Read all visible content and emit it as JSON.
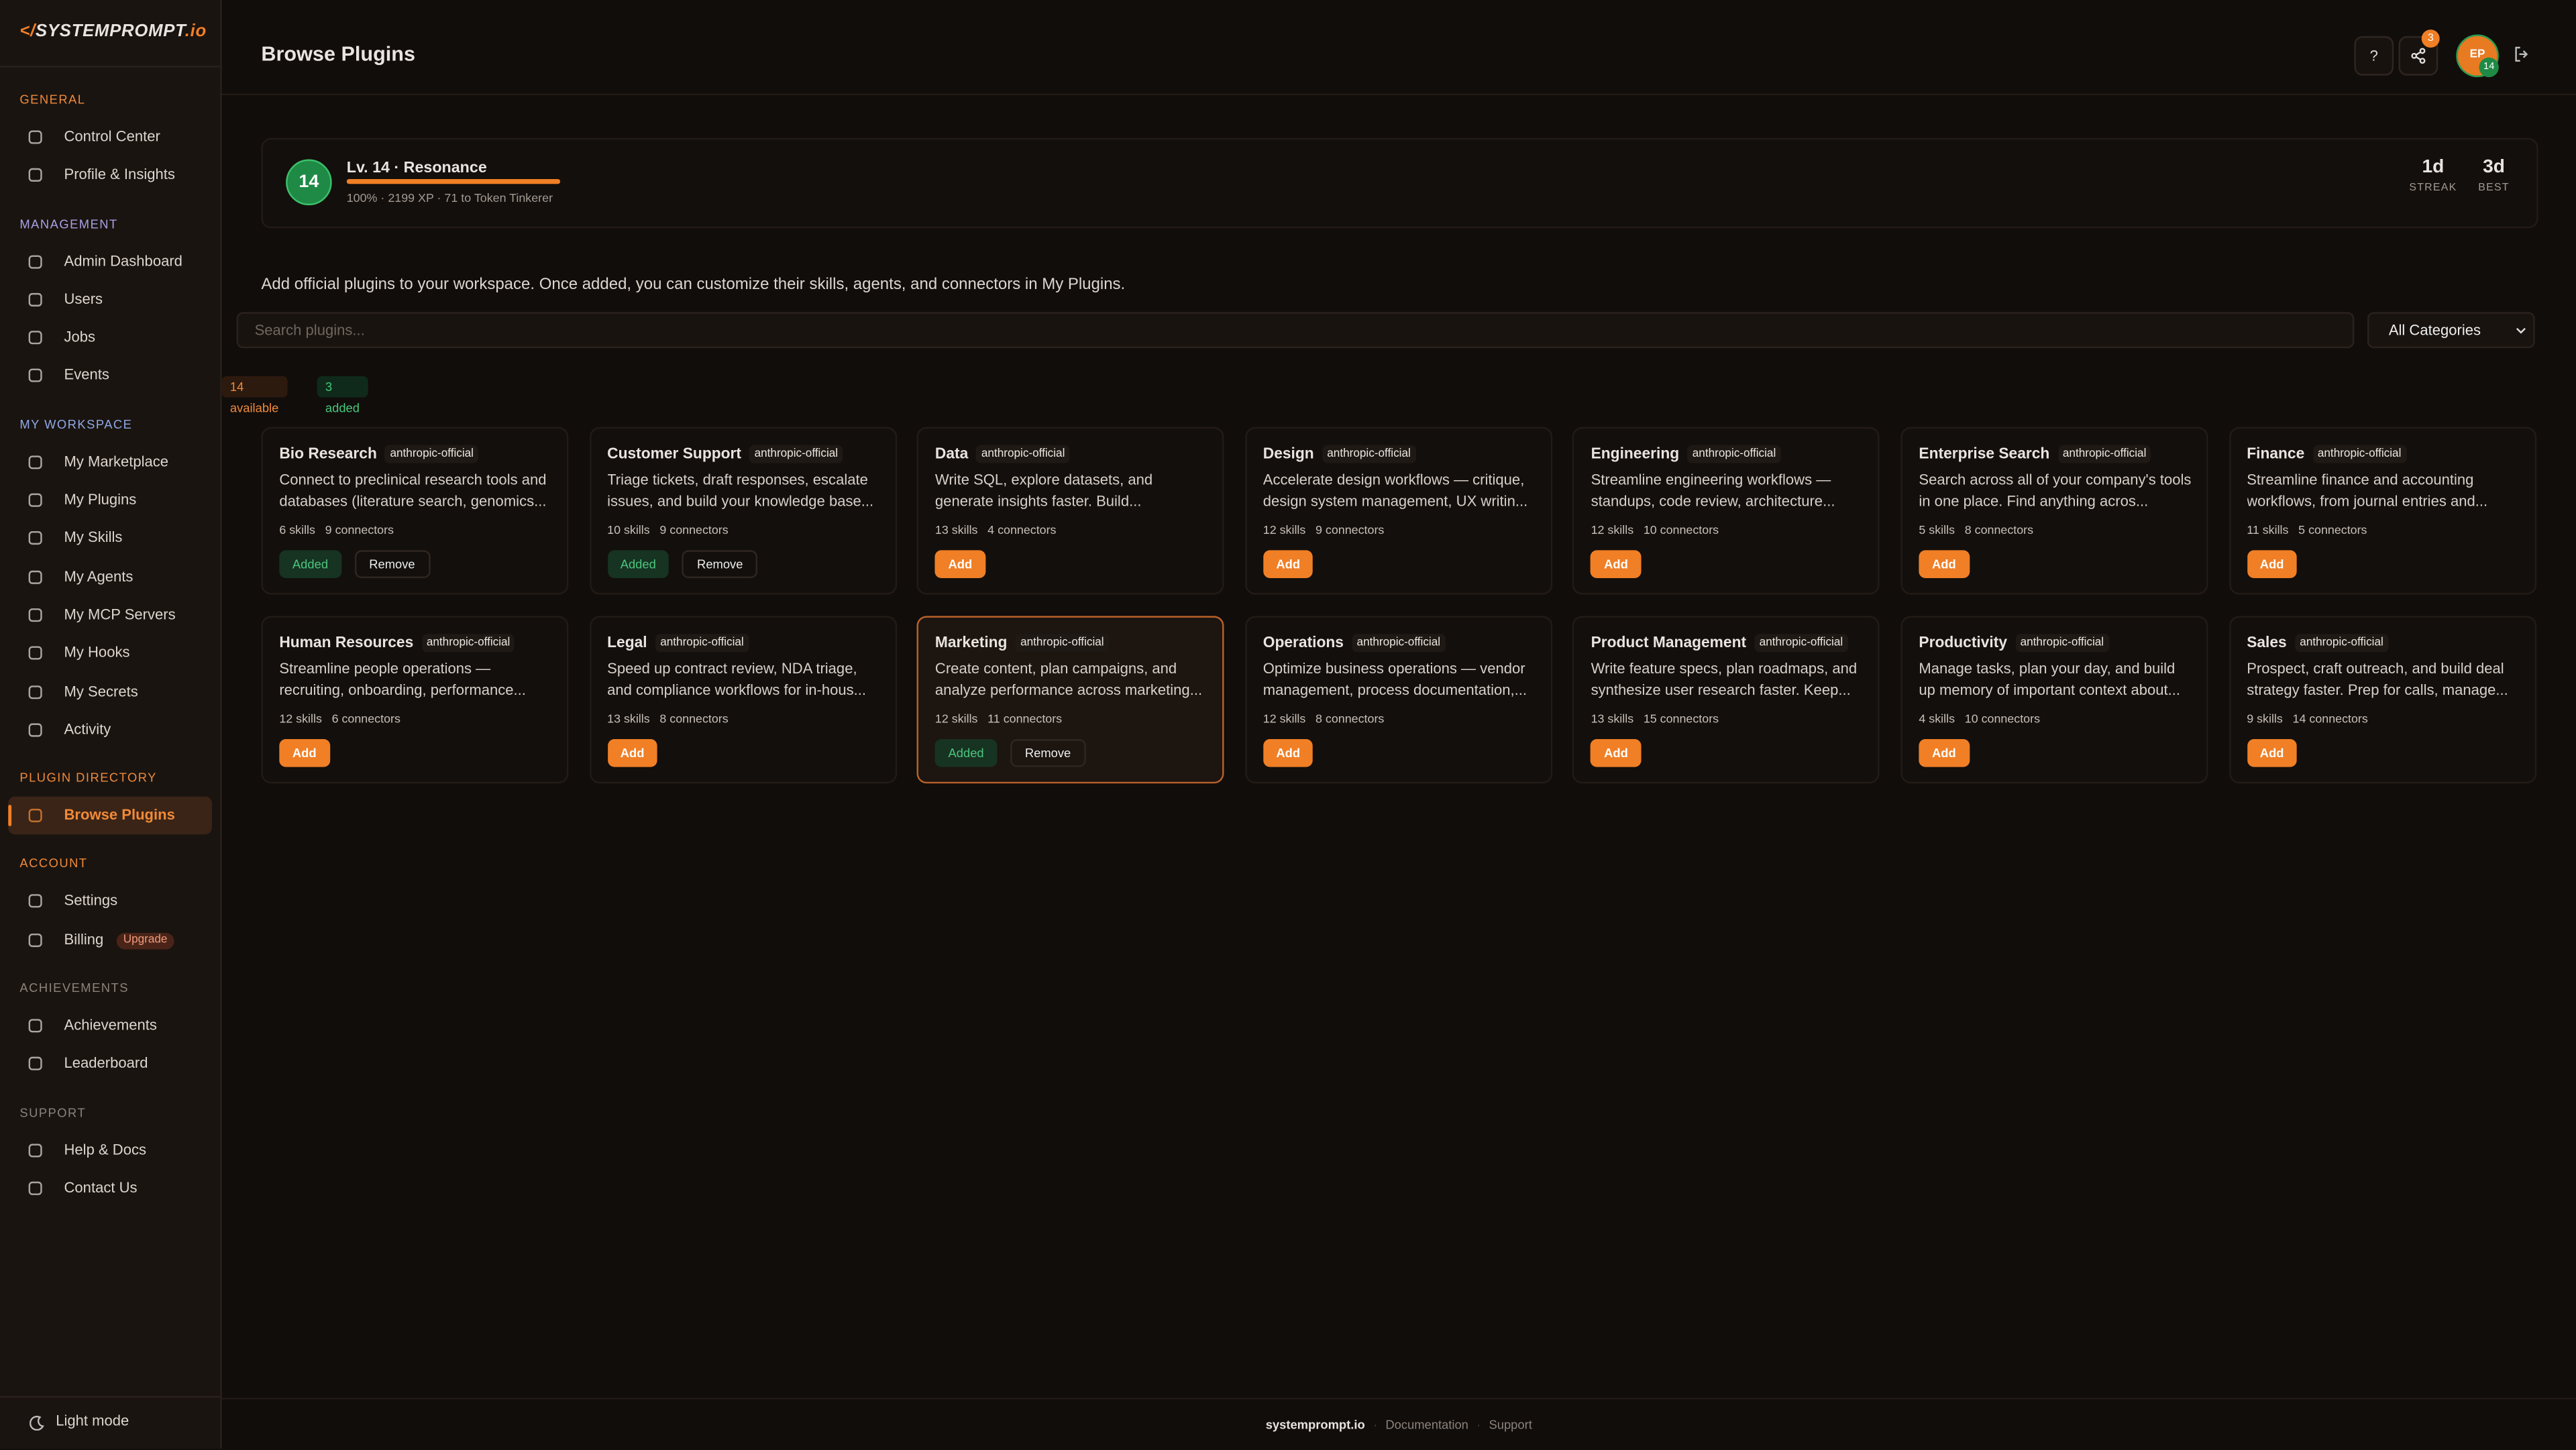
{
  "sidebar": {
    "logo": {
      "prefix": "</",
      "name": "SYSTEMPROMPT",
      "suffix": ".io"
    },
    "sections": [
      {
        "title": "GENERAL",
        "items": [
          {
            "label": "Control Center"
          },
          {
            "label": "Profile & Insights"
          }
        ]
      },
      {
        "title": "MANAGEMENT",
        "items": [
          {
            "label": "Admin Dashboard"
          },
          {
            "label": "Users"
          },
          {
            "label": "Jobs"
          },
          {
            "label": "Events"
          }
        ]
      },
      {
        "title": "MY WORKSPACE",
        "items": [
          {
            "label": "My Marketplace"
          },
          {
            "label": "My Plugins"
          },
          {
            "label": "My Skills"
          },
          {
            "label": "My Agents"
          },
          {
            "label": "My MCP Servers"
          },
          {
            "label": "My Hooks"
          },
          {
            "label": "My Secrets"
          },
          {
            "label": "Activity"
          }
        ]
      },
      {
        "title": "PLUGIN DIRECTORY",
        "items": [
          {
            "label": "Browse Plugins",
            "active": true
          }
        ]
      },
      {
        "title": "ACCOUNT",
        "items": [
          {
            "label": "Settings"
          },
          {
            "label": "Billing",
            "badge": "Upgrade"
          }
        ]
      },
      {
        "title": "ACHIEVEMENTS",
        "items": [
          {
            "label": "Achievements"
          },
          {
            "label": "Leaderboard"
          }
        ]
      },
      {
        "title": "SUPPORT",
        "items": [
          {
            "label": "Help & Docs"
          },
          {
            "label": "Contact Us"
          }
        ]
      }
    ],
    "theme_toggle": "Light mode"
  },
  "header": {
    "title": "Browse Plugins",
    "help": "?",
    "notifications": "3",
    "avatar": "EP",
    "avatar_level": "14"
  },
  "level": {
    "badge": "14",
    "title": "Lv. 14 · Resonance",
    "progress": 100,
    "detail": "100% · 2199 XP · 71 to Token Tinkerer",
    "stats": [
      {
        "value": "1d",
        "label": "STREAK"
      },
      {
        "value": "3d",
        "label": "BEST"
      }
    ]
  },
  "intro": "Add official plugins to your workspace. Once added, you can customize their skills, agents, and connectors in My Plugins.",
  "search_placeholder": "Search plugins...",
  "category_filter": "All Categories",
  "counts": {
    "available": "14 available",
    "added": "3 added"
  },
  "plugins": [
    {
      "name": "Bio Research",
      "publisher": "anthropic-official",
      "description": "Connect to preclinical research tools and databases (literature search, genomics...",
      "skills": "6 skills",
      "connectors": "9 connectors",
      "actions": [
        "Added",
        "Remove"
      ]
    },
    {
      "name": "Customer Support",
      "publisher": "anthropic-official",
      "description": "Triage tickets, draft responses, escalate issues, and build your knowledge base...",
      "skills": "10 skills",
      "connectors": "9 connectors",
      "actions": [
        "Added",
        "Remove"
      ]
    },
    {
      "name": "Data",
      "publisher": "anthropic-official",
      "description": "Write SQL, explore datasets, and generate insights faster. Build...",
      "skills": "13 skills",
      "connectors": "4 connectors",
      "actions": [
        "Add"
      ]
    },
    {
      "name": "Design",
      "publisher": "anthropic-official",
      "description": "Accelerate design workflows — critique, design system management, UX writin...",
      "skills": "12 skills",
      "connectors": "9 connectors",
      "actions": [
        "Add"
      ]
    },
    {
      "name": "Engineering",
      "publisher": "anthropic-official",
      "description": "Streamline engineering workflows — standups, code review, architecture...",
      "skills": "12 skills",
      "connectors": "10 connectors",
      "actions": [
        "Add"
      ]
    },
    {
      "name": "Enterprise Search",
      "publisher": "anthropic-official",
      "description": "Search across all of your company's tools in one place. Find anything acros...",
      "skills": "5 skills",
      "connectors": "8 connectors",
      "actions": [
        "Add"
      ]
    },
    {
      "name": "Finance",
      "publisher": "anthropic-official",
      "description": "Streamline finance and accounting workflows, from journal entries and...",
      "skills": "11 skills",
      "connectors": "5 connectors",
      "actions": [
        "Add"
      ]
    },
    {
      "name": "Human Resources",
      "publisher": "anthropic-official",
      "description": "Streamline people operations — recruiting, onboarding, performance...",
      "skills": "12 skills",
      "connectors": "6 connectors",
      "actions": [
        "Add"
      ]
    },
    {
      "name": "Legal",
      "publisher": "anthropic-official",
      "description": "Speed up contract review, NDA triage, and compliance workflows for in-hous...",
      "skills": "13 skills",
      "connectors": "8 connectors",
      "actions": [
        "Add"
      ]
    },
    {
      "name": "Marketing",
      "publisher": "anthropic-official",
      "description": "Create content, plan campaigns, and analyze performance across marketing...",
      "skills": "12 skills",
      "connectors": "11 connectors",
      "actions": [
        "Added",
        "Remove"
      ],
      "highlighted": true
    },
    {
      "name": "Operations",
      "publisher": "anthropic-official",
      "description": "Optimize business operations — vendor management, process documentation,...",
      "skills": "12 skills",
      "connectors": "8 connectors",
      "actions": [
        "Add"
      ]
    },
    {
      "name": "Product Management",
      "publisher": "anthropic-official",
      "description": "Write feature specs, plan roadmaps, and synthesize user research faster. Keep...",
      "skills": "13 skills",
      "connectors": "15 connectors",
      "actions": [
        "Add"
      ]
    },
    {
      "name": "Productivity",
      "publisher": "anthropic-official",
      "description": "Manage tasks, plan your day, and build up memory of important context about...",
      "skills": "4 skills",
      "connectors": "10 connectors",
      "actions": [
        "Add"
      ]
    },
    {
      "name": "Sales",
      "publisher": "anthropic-official",
      "description": "Prospect, craft outreach, and build deal strategy faster. Prep for calls, manage...",
      "skills": "9 skills",
      "connectors": "14 connectors",
      "actions": [
        "Add"
      ]
    }
  ],
  "footer": {
    "brand": "systemprompt.io",
    "links": [
      "Documentation",
      "Support"
    ]
  }
}
